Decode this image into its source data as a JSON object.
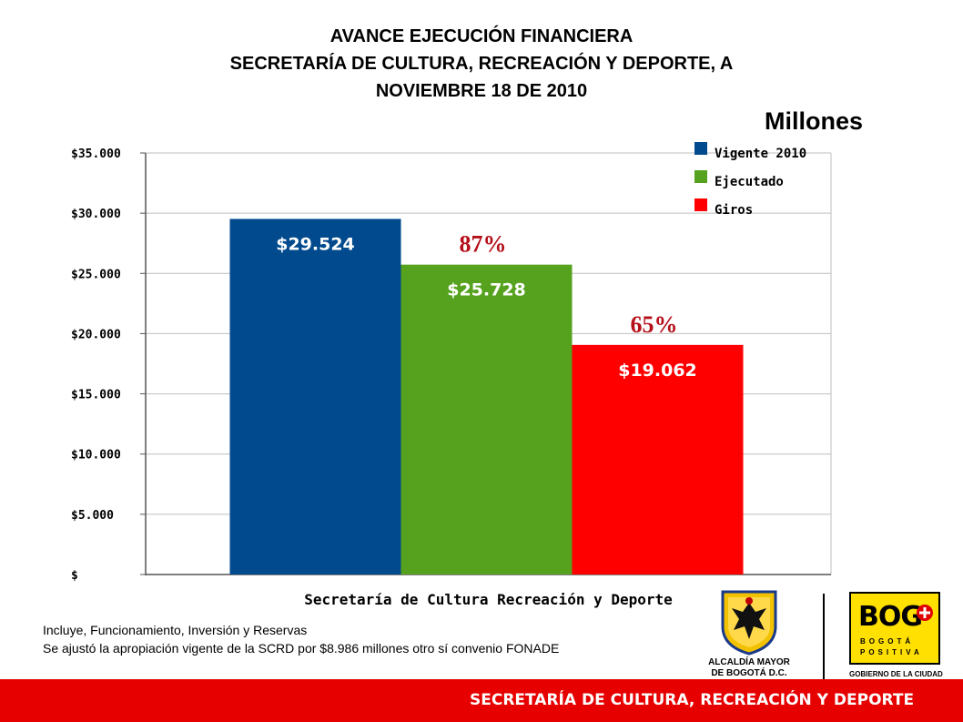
{
  "title_lines": [
    "AVANCE EJECUCIÓN FINANCIERA",
    "SECRETARÍA DE CULTURA, RECREACIÓN Y DEPORTE,  A",
    "NOVIEMBRE 18 DE 2010"
  ],
  "units_label": "Millones",
  "chart_data": {
    "type": "bar",
    "categories": [
      "Secretaría de Cultura Recreación y Deporte"
    ],
    "xlabel": "Secretaría de Cultura Recreación y Deporte",
    "ylabel": "",
    "ylim": [
      0,
      35000
    ],
    "y_ticks": [
      0,
      5000,
      10000,
      15000,
      20000,
      25000,
      30000,
      35000
    ],
    "y_tick_labels": [
      "$",
      "$5.000",
      "$10.000",
      "$15.000",
      "$20.000",
      "$25.000",
      "$30.000",
      "$35.000"
    ],
    "grid": true,
    "legend_position": "top-right",
    "series": [
      {
        "name": "Vigente 2010",
        "values": [
          29524
        ],
        "label": "$29.524",
        "color": "#004a8d",
        "percent": ""
      },
      {
        "name": "Ejecutado",
        "values": [
          25728
        ],
        "label": "$25.728",
        "color": "#56a21e",
        "percent": "87%"
      },
      {
        "name": "Giros",
        "values": [
          19062
        ],
        "label": "$19.062",
        "color": "#ff0000",
        "percent": "65%"
      }
    ]
  },
  "notes": {
    "line1": "Incluye, Funcionamiento, Inversión y Reservas",
    "line2": "Se ajustó la apropiación vigente de la SCRD por $8.986 millones otro sí convenio FONADE"
  },
  "logos": {
    "alcaldia_line1": "ALCALDÍA MAYOR",
    "alcaldia_line2": "DE BOGOTÁ D.C.",
    "bogota_word": "BOG",
    "bogota_line1": "BOGOTÁ",
    "bogota_line2": "POSITIVA",
    "bogota_caption": "GOBIERNO DE LA CIUDAD"
  },
  "footer_text": "SECRETARÍA DE CULTURA, RECREACIÓN Y DEPORTE"
}
